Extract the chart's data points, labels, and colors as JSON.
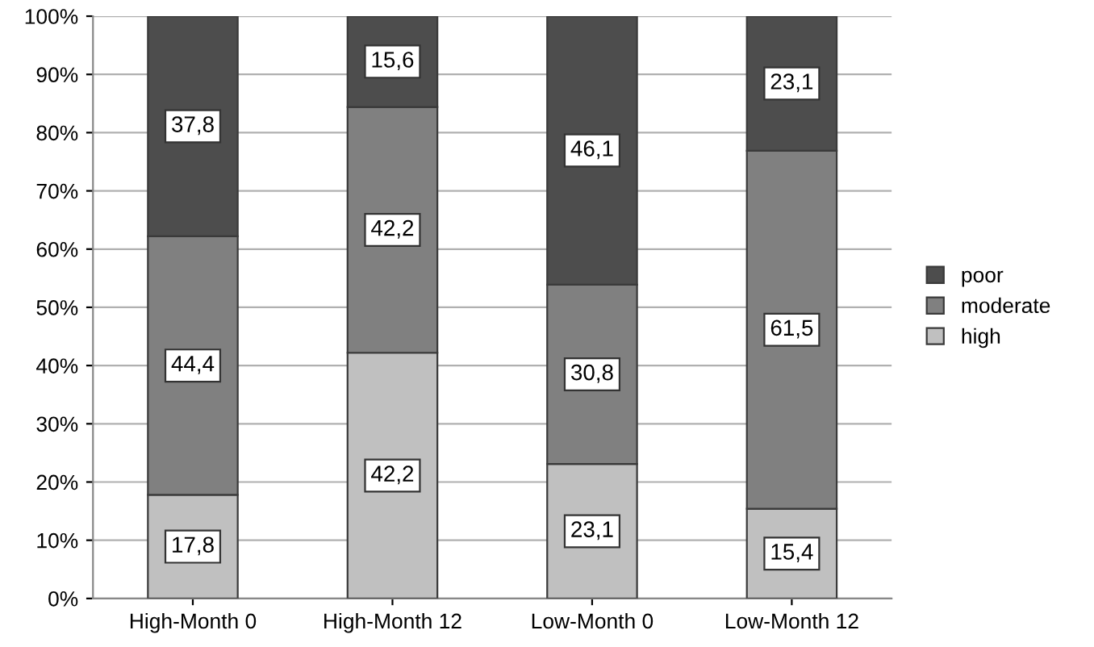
{
  "chart_data": {
    "type": "bar",
    "stacked": true,
    "categories": [
      "High-Month 0",
      "High-Month 12",
      "Low-Month 0",
      "Low-Month 12"
    ],
    "series": [
      {
        "name": "high",
        "color": "#c0c0c0",
        "values": [
          17.8,
          42.2,
          23.1,
          15.4
        ],
        "value_labels": [
          "17,8",
          "42,2",
          "23,1",
          "15,4"
        ]
      },
      {
        "name": "moderate",
        "color": "#808080",
        "values": [
          44.4,
          42.2,
          30.8,
          61.5
        ],
        "value_labels": [
          "44,4",
          "42,2",
          "30,8",
          "61,5"
        ]
      },
      {
        "name": "poor",
        "color": "#4d4d4d",
        "values": [
          37.8,
          15.6,
          46.1,
          23.1
        ],
        "value_labels": [
          "37,8",
          "15,6",
          "46,1",
          "23,1"
        ]
      }
    ],
    "ylim": [
      0,
      100
    ],
    "yticks": [
      {
        "value": 0,
        "label": "0%"
      },
      {
        "value": 10,
        "label": "10%"
      },
      {
        "value": 20,
        "label": "20%"
      },
      {
        "value": 30,
        "label": "30%"
      },
      {
        "value": 40,
        "label": "40%"
      },
      {
        "value": 50,
        "label": "50%"
      },
      {
        "value": 60,
        "label": "60%"
      },
      {
        "value": 70,
        "label": "70%"
      },
      {
        "value": 80,
        "label": "80%"
      },
      {
        "value": 90,
        "label": "90%"
      },
      {
        "value": 100,
        "label": "100%"
      }
    ],
    "grid": "y",
    "legend": "right"
  }
}
